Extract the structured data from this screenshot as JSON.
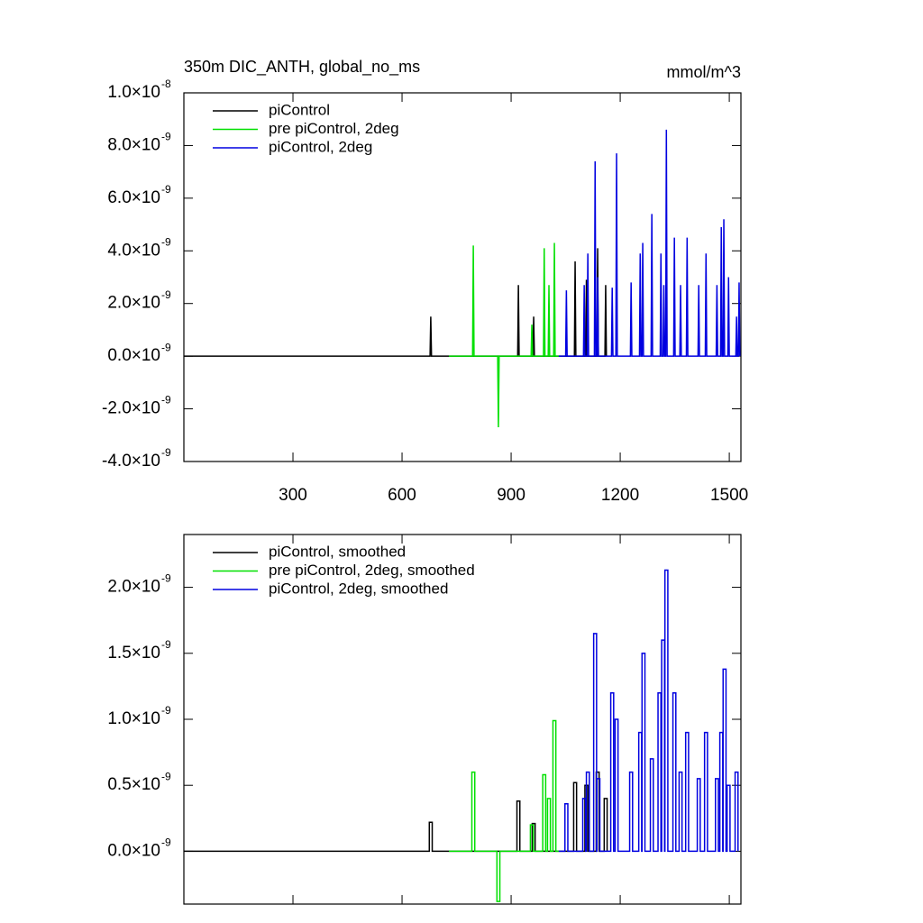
{
  "chart_data": [
    {
      "type": "line",
      "title": "350m DIC_ANTH, global_no_ms",
      "units": "mmol/m^3",
      "xlim": [
        0,
        1532
      ],
      "xticks": [
        300,
        600,
        900,
        1200,
        1500
      ],
      "show_xtick_labels": true,
      "ylim": [
        -4e-09,
        1e-08
      ],
      "yticks": [
        {
          "value": -4e-09,
          "label": "-4.0×10",
          "exponent": "-9"
        },
        {
          "value": -2e-09,
          "label": "-2.0×10",
          "exponent": "-9"
        },
        {
          "value": 0,
          "label": "0.0×10",
          "exponent": "-9"
        },
        {
          "value": 2e-09,
          "label": "2.0×10",
          "exponent": "-9"
        },
        {
          "value": 4e-09,
          "label": "4.0×10",
          "exponent": "-9"
        },
        {
          "value": 6e-09,
          "label": "6.0×10",
          "exponent": "-9"
        },
        {
          "value": 8e-09,
          "label": "8.0×10",
          "exponent": "-9"
        },
        {
          "value": 1e-08,
          "label": "1.0×10",
          "exponent": "-8"
        }
      ],
      "legend": "upper left",
      "series": [
        {
          "name": "piControl",
          "color": "#000000",
          "x": [
            0,
            677,
            679,
            681,
            918,
            920,
            922,
            960,
            962,
            964,
            1074,
            1076,
            1078,
            1105,
            1107,
            1109,
            1136,
            1138,
            1140,
            1158,
            1160,
            1162
          ],
          "values": [
            0,
            0,
            1.5e-09,
            0,
            0,
            2.7e-09,
            0,
            0,
            1.5e-09,
            0,
            0,
            3.6e-09,
            0,
            0,
            2.9e-09,
            0,
            0,
            4.1e-09,
            0,
            0,
            2.7e-09,
            0
          ]
        },
        {
          "name": "pre piControl, 2deg",
          "color": "#00e000",
          "x": [
            729,
            794,
            796,
            798,
            863,
            865,
            867,
            955,
            957,
            959,
            989,
            991,
            993,
            1002,
            1004,
            1006,
            1017,
            1019,
            1021,
            1031
          ],
          "values": [
            0,
            0,
            4.2e-09,
            0,
            0,
            -2.7e-09,
            0,
            0,
            1.2e-09,
            0,
            0,
            4.1e-09,
            0,
            0,
            2.7e-09,
            0,
            0,
            4.3e-09,
            0,
            0
          ]
        },
        {
          "name": "piControl, 2deg",
          "color": "#0000e0",
          "x": [
            1031,
            1050,
            1052,
            1054,
            1099,
            1101,
            1103,
            1109,
            1111,
            1113,
            1129,
            1131,
            1133,
            1136,
            1138,
            1140,
            1176,
            1178,
            1180,
            1188,
            1190,
            1192,
            1228,
            1230,
            1232,
            1253,
            1255,
            1257,
            1260,
            1262,
            1264,
            1285,
            1287,
            1289,
            1310,
            1312,
            1314,
            1318,
            1320,
            1322,
            1325,
            1327,
            1329,
            1347,
            1349,
            1351,
            1364,
            1366,
            1368,
            1382,
            1384,
            1386,
            1414,
            1416,
            1418,
            1434,
            1436,
            1438,
            1464,
            1466,
            1468,
            1476,
            1478,
            1480,
            1483,
            1485,
            1487,
            1496,
            1498,
            1500,
            1518,
            1520,
            1522,
            1525,
            1527,
            1529
          ],
          "values": [
            0,
            0,
            2.5e-09,
            0,
            0,
            2.7e-09,
            0,
            0,
            3.9e-09,
            0,
            0,
            7.4e-09,
            0,
            0,
            3e-09,
            0,
            0,
            2.6e-09,
            0,
            0,
            7.7e-09,
            0,
            0,
            2.8e-09,
            0,
            0,
            3.9e-09,
            0,
            0,
            4.3e-09,
            0,
            0,
            5.4e-09,
            0,
            0,
            3.9e-09,
            0,
            0,
            2.7e-09,
            0,
            0,
            8.6e-09,
            0,
            0,
            4.5e-09,
            0,
            0,
            2.7e-09,
            0,
            0,
            4.5e-09,
            0,
            0,
            2.7e-09,
            0,
            0,
            3.9e-09,
            0,
            0,
            2.7e-09,
            0,
            0,
            4.9e-09,
            0,
            0,
            5.2e-09,
            0,
            0,
            3e-09,
            0,
            0,
            1.5e-09,
            0,
            0,
            2.8e-09,
            0
          ]
        }
      ]
    },
    {
      "type": "line",
      "xlim": [
        0,
        1532
      ],
      "xticks": [
        300,
        600,
        900,
        1200,
        1500
      ],
      "show_xtick_labels": false,
      "ylim": [
        -4e-10,
        2.4e-09
      ],
      "yticks": [
        {
          "value": 0,
          "label": "0.0×10",
          "exponent": "-9"
        },
        {
          "value": 5e-10,
          "label": "0.5×10",
          "exponent": "-9"
        },
        {
          "value": 1e-09,
          "label": "1.0×10",
          "exponent": "-9"
        },
        {
          "value": 1.5e-09,
          "label": "1.5×10",
          "exponent": "-9"
        },
        {
          "value": 2e-09,
          "label": "2.0×10",
          "exponent": "-9"
        }
      ],
      "legend": "upper left",
      "series": [
        {
          "name": "piControl, smoothed",
          "color": "#000000",
          "x": [
            0,
            675,
            675,
            683,
            683,
            916,
            916,
            924,
            924,
            958,
            958,
            966,
            966,
            1072,
            1072,
            1080,
            1080,
            1103,
            1103,
            1111,
            1111,
            1134,
            1134,
            1142,
            1142,
            1156,
            1156,
            1164,
            1164
          ],
          "values": [
            0,
            0,
            2.2e-10,
            2.2e-10,
            0,
            0,
            3.8e-10,
            3.8e-10,
            0,
            0,
            2.1e-10,
            2.1e-10,
            0,
            0,
            5.2e-10,
            5.2e-10,
            0,
            0,
            5e-10,
            5e-10,
            0,
            0,
            6e-10,
            6e-10,
            0,
            0,
            4e-10,
            4e-10,
            0
          ]
        },
        {
          "name": "pre piControl, 2deg, smoothed",
          "color": "#00e000",
          "x": [
            729,
            792,
            792,
            800,
            800,
            861,
            861,
            869,
            869,
            953,
            953,
            961,
            961,
            987,
            987,
            995,
            995,
            1000,
            1000,
            1008,
            1008,
            1015,
            1015,
            1023,
            1023,
            1031
          ],
          "values": [
            0,
            0,
            6e-10,
            6e-10,
            0,
            0,
            -3.8e-10,
            -3.8e-10,
            0,
            0,
            2e-10,
            2e-10,
            0,
            0,
            5.8e-10,
            5.8e-10,
            0,
            0,
            4e-10,
            4e-10,
            0,
            0,
            9.9e-10,
            9.9e-10,
            0,
            0
          ]
        },
        {
          "name": "piControl, 2deg, smoothed",
          "color": "#0000e0",
          "x": [
            1031,
            1048,
            1048,
            1056,
            1056,
            1097,
            1097,
            1105,
            1105,
            1107,
            1107,
            1115,
            1115,
            1127,
            1127,
            1135,
            1135,
            1136,
            1136,
            1144,
            1144,
            1174,
            1174,
            1182,
            1182,
            1186,
            1186,
            1194,
            1194,
            1226,
            1226,
            1234,
            1234,
            1251,
            1251,
            1259,
            1259,
            1260,
            1260,
            1268,
            1268,
            1283,
            1283,
            1291,
            1291,
            1304,
            1304,
            1312,
            1312,
            1314,
            1314,
            1322,
            1322,
            1323,
            1323,
            1331,
            1331,
            1345,
            1345,
            1353,
            1353,
            1362,
            1362,
            1370,
            1370,
            1380,
            1380,
            1388,
            1388,
            1412,
            1412,
            1420,
            1420,
            1432,
            1432,
            1440,
            1440,
            1462,
            1462,
            1470,
            1470,
            1474,
            1474,
            1482,
            1482,
            1483,
            1483,
            1491,
            1491,
            1494,
            1494,
            1502,
            1502,
            1516,
            1516,
            1524,
            1524
          ],
          "values": [
            0,
            0,
            3.6e-10,
            3.6e-10,
            0,
            0,
            4e-10,
            4e-10,
            0,
            0,
            6e-10,
            6e-10,
            0,
            0,
            1.65e-09,
            1.65e-09,
            0,
            0,
            5.5e-10,
            5.5e-10,
            0,
            0,
            1.2e-09,
            1.2e-09,
            0,
            0,
            1e-09,
            1e-09,
            0,
            0,
            6e-10,
            6e-10,
            0,
            0,
            9e-10,
            9e-10,
            0,
            0,
            1.5e-09,
            1.5e-09,
            0,
            0,
            7e-10,
            7e-10,
            0,
            0,
            1.2e-09,
            1.2e-09,
            0,
            0,
            1.6e-09,
            1.6e-09,
            0,
            0,
            2.13e-09,
            2.13e-09,
            0,
            0,
            1.2e-09,
            1.2e-09,
            0,
            0,
            6e-10,
            6e-10,
            0,
            0,
            9e-10,
            9e-10,
            0,
            0,
            5.5e-10,
            5.5e-10,
            0,
            0,
            9e-10,
            9e-10,
            0,
            0,
            5.5e-10,
            5.5e-10,
            0,
            0,
            9e-10,
            9e-10,
            0,
            0,
            1.38e-09,
            1.38e-09,
            0,
            0,
            5e-10,
            5e-10,
            0,
            0,
            6e-10,
            6e-10,
            0
          ]
        }
      ]
    }
  ]
}
